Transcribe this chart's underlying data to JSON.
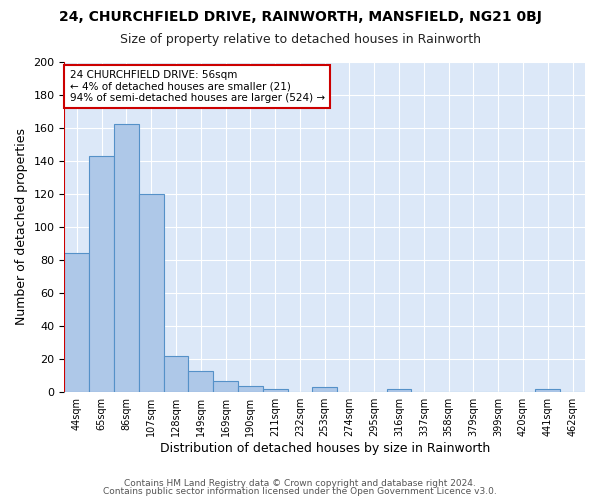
{
  "title1": "24, CHURCHFIELD DRIVE, RAINWORTH, MANSFIELD, NG21 0BJ",
  "title2": "Size of property relative to detached houses in Rainworth",
  "xlabel": "Distribution of detached houses by size in Rainworth",
  "ylabel": "Number of detached properties",
  "footer1": "Contains HM Land Registry data © Crown copyright and database right 2024.",
  "footer2": "Contains public sector information licensed under the Open Government Licence v3.0.",
  "bin_labels": [
    "44sqm",
    "65sqm",
    "86sqm",
    "107sqm",
    "128sqm",
    "149sqm",
    "169sqm",
    "190sqm",
    "211sqm",
    "232sqm",
    "253sqm",
    "274sqm",
    "295sqm",
    "316sqm",
    "337sqm",
    "358sqm",
    "379sqm",
    "399sqm",
    "420sqm",
    "441sqm",
    "462sqm"
  ],
  "bar_values": [
    84,
    143,
    162,
    120,
    22,
    13,
    7,
    4,
    2,
    0,
    3,
    0,
    0,
    2,
    0,
    0,
    0,
    0,
    0,
    2,
    0
  ],
  "bar_color": "#aec8e8",
  "bar_edge_color": "#5591c8",
  "vline_color": "#cc0000",
  "annotation_text": "24 CHURCHFIELD DRIVE: 56sqm\n← 4% of detached houses are smaller (21)\n94% of semi-detached houses are larger (524) →",
  "annotation_box_color": "#ffffff",
  "annotation_box_edge": "#cc0000",
  "ylim": [
    0,
    200
  ],
  "yticks": [
    0,
    20,
    40,
    60,
    80,
    100,
    120,
    140,
    160,
    180,
    200
  ],
  "plot_bg_color": "#dce8f8",
  "fig_bg_color": "#ffffff",
  "grid_color": "#ffffff"
}
